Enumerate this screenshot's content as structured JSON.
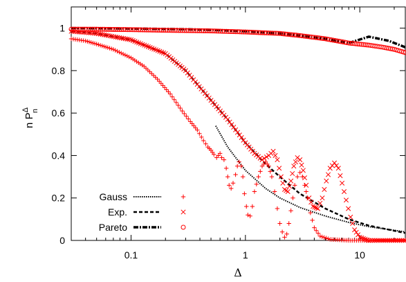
{
  "chart_data": {
    "type": "scatter",
    "xlabel": "Δ",
    "ylabel": "n P",
    "ylabel_super": "Δ",
    "ylabel_sub": "n",
    "x_scale": "log",
    "xlim": [
      0.03,
      25
    ],
    "ylim": [
      0,
      1.1
    ],
    "x_ticks": [
      {
        "value": 0.1,
        "label": "0.1"
      },
      {
        "value": 1,
        "label": "1"
      },
      {
        "value": 10,
        "label": "10"
      }
    ],
    "y_ticks": [
      {
        "value": 0,
        "label": "0"
      },
      {
        "value": 0.2,
        "label": "0.2"
      },
      {
        "value": 0.4,
        "label": "0.4"
      },
      {
        "value": 0.6,
        "label": "0.6"
      },
      {
        "value": 0.8,
        "label": "0.8"
      },
      {
        "value": 1,
        "label": "1"
      }
    ],
    "grid": false,
    "legend_position": "bottom-left",
    "colors": {
      "points": "#ff0000",
      "lines": "#000000"
    },
    "series": [
      {
        "name": "Gauss",
        "marker": "plus",
        "line_style": "dotted",
        "line": [
          [
            0.55,
            0.54
          ],
          [
            0.7,
            0.44
          ],
          [
            1,
            0.33
          ],
          [
            1.5,
            0.245
          ],
          [
            2,
            0.2
          ],
          [
            3,
            0.155
          ],
          [
            5,
            0.115
          ],
          [
            8,
            0.085
          ],
          [
            12,
            0.065
          ],
          [
            25,
            0.04
          ]
        ],
        "points": [
          [
            0.03,
            0.95
          ],
          [
            0.04,
            0.94
          ],
          [
            0.05,
            0.925
          ],
          [
            0.07,
            0.9
          ],
          [
            0.1,
            0.86
          ],
          [
            0.13,
            0.82
          ],
          [
            0.17,
            0.76
          ],
          [
            0.22,
            0.69
          ],
          [
            0.28,
            0.61
          ],
          [
            0.33,
            0.56
          ],
          [
            0.38,
            0.52
          ],
          [
            0.43,
            0.47
          ],
          [
            0.47,
            0.44
          ],
          [
            0.5,
            0.425
          ],
          [
            0.53,
            0.405
          ],
          [
            0.56,
            0.39
          ],
          [
            0.6,
            0.41
          ],
          [
            0.62,
            0.39
          ],
          [
            0.65,
            0.38
          ],
          [
            0.68,
            0.34
          ],
          [
            0.7,
            0.3
          ],
          [
            0.72,
            0.26
          ],
          [
            0.75,
            0.245
          ],
          [
            0.78,
            0.27
          ],
          [
            0.82,
            0.31
          ],
          [
            0.85,
            0.35
          ],
          [
            0.88,
            0.37
          ],
          [
            0.92,
            0.35
          ],
          [
            0.95,
            0.3
          ],
          [
            0.98,
            0.22
          ],
          [
            1.02,
            0.16
          ],
          [
            1.05,
            0.12
          ],
          [
            1.1,
            0.115
          ],
          [
            1.15,
            0.16
          ],
          [
            1.2,
            0.23
          ],
          [
            1.3,
            0.3
          ],
          [
            1.4,
            0.35
          ],
          [
            1.5,
            0.37
          ],
          [
            1.6,
            0.35
          ],
          [
            1.7,
            0.3
          ],
          [
            1.8,
            0.23
          ],
          [
            1.9,
            0.15
          ],
          [
            2,
            0.08
          ],
          [
            2.1,
            0.04
          ],
          [
            2.2,
            0.015
          ],
          [
            2.3,
            0.03
          ],
          [
            2.4,
            0.08
          ],
          [
            2.5,
            0.14
          ],
          [
            2.6,
            0.2
          ],
          [
            2.7,
            0.26
          ],
          [
            2.85,
            0.3
          ],
          [
            3,
            0.32
          ],
          [
            3.15,
            0.3
          ],
          [
            3.3,
            0.26
          ],
          [
            3.5,
            0.2
          ],
          [
            3.7,
            0.13
          ],
          [
            4,
            0.06
          ],
          [
            4.5,
            0.02
          ],
          [
            5.5,
            0.005
          ],
          [
            8,
            0
          ],
          [
            15,
            0
          ],
          [
            25,
            0
          ]
        ]
      },
      {
        "name": "Exp.",
        "marker": "cross",
        "line_style": "dashed",
        "line": [
          [
            0.03,
            0.985
          ],
          [
            0.05,
            0.975
          ],
          [
            0.1,
            0.945
          ],
          [
            0.2,
            0.88
          ],
          [
            0.3,
            0.8
          ],
          [
            0.5,
            0.66
          ],
          [
            0.7,
            0.57
          ],
          [
            1,
            0.46
          ],
          [
            1.5,
            0.36
          ],
          [
            2,
            0.3
          ],
          [
            3,
            0.22
          ],
          [
            5,
            0.15
          ],
          [
            8,
            0.1
          ],
          [
            12,
            0.07
          ],
          [
            25,
            0.035
          ]
        ],
        "points": [
          [
            0.03,
            0.985
          ],
          [
            0.05,
            0.975
          ],
          [
            0.1,
            0.945
          ],
          [
            0.2,
            0.88
          ],
          [
            0.3,
            0.8
          ],
          [
            0.5,
            0.66
          ],
          [
            0.7,
            0.57
          ],
          [
            1,
            0.46
          ],
          [
            1.2,
            0.41
          ],
          [
            1.4,
            0.38
          ],
          [
            1.6,
            0.4
          ],
          [
            1.75,
            0.42
          ],
          [
            1.9,
            0.38
          ],
          [
            2.05,
            0.3
          ],
          [
            2.2,
            0.24
          ],
          [
            2.35,
            0.23
          ],
          [
            2.5,
            0.28
          ],
          [
            2.65,
            0.35
          ],
          [
            2.85,
            0.39
          ],
          [
            3,
            0.38
          ],
          [
            3.2,
            0.33
          ],
          [
            3.4,
            0.26
          ],
          [
            3.6,
            0.2
          ],
          [
            3.9,
            0.16
          ],
          [
            4.3,
            0.15
          ],
          [
            4.7,
            0.2
          ],
          [
            5.1,
            0.28
          ],
          [
            5.5,
            0.34
          ],
          [
            6,
            0.365
          ],
          [
            6.5,
            0.34
          ],
          [
            7,
            0.27
          ],
          [
            7.6,
            0.19
          ],
          [
            8.3,
            0.11
          ],
          [
            9,
            0.05
          ],
          [
            10,
            0.015
          ],
          [
            12,
            0
          ],
          [
            15,
            0
          ],
          [
            25,
            0
          ]
        ]
      },
      {
        "name": "Pareto",
        "marker": "circle",
        "line_style": "dash-dot",
        "line": [
          [
            0.03,
            1
          ],
          [
            0.1,
            0.998
          ],
          [
            0.3,
            0.995
          ],
          [
            0.5,
            0.992
          ],
          [
            1,
            0.985
          ],
          [
            2,
            0.975
          ],
          [
            3,
            0.965
          ],
          [
            5,
            0.95
          ],
          [
            8,
            0.93
          ],
          [
            12,
            0.96
          ],
          [
            18,
            0.94
          ],
          [
            25,
            0.91
          ]
        ],
        "points": [
          [
            0.03,
            0.995
          ],
          [
            0.05,
            0.995
          ],
          [
            0.1,
            0.993
          ],
          [
            0.2,
            0.99
          ],
          [
            0.5,
            0.987
          ],
          [
            1,
            0.982
          ],
          [
            2,
            0.975
          ],
          [
            3,
            0.965
          ],
          [
            5,
            0.95
          ],
          [
            8,
            0.93
          ],
          [
            12,
            0.92
          ],
          [
            16,
            0.91
          ],
          [
            20,
            0.9
          ],
          [
            25,
            0.885
          ]
        ]
      }
    ]
  }
}
